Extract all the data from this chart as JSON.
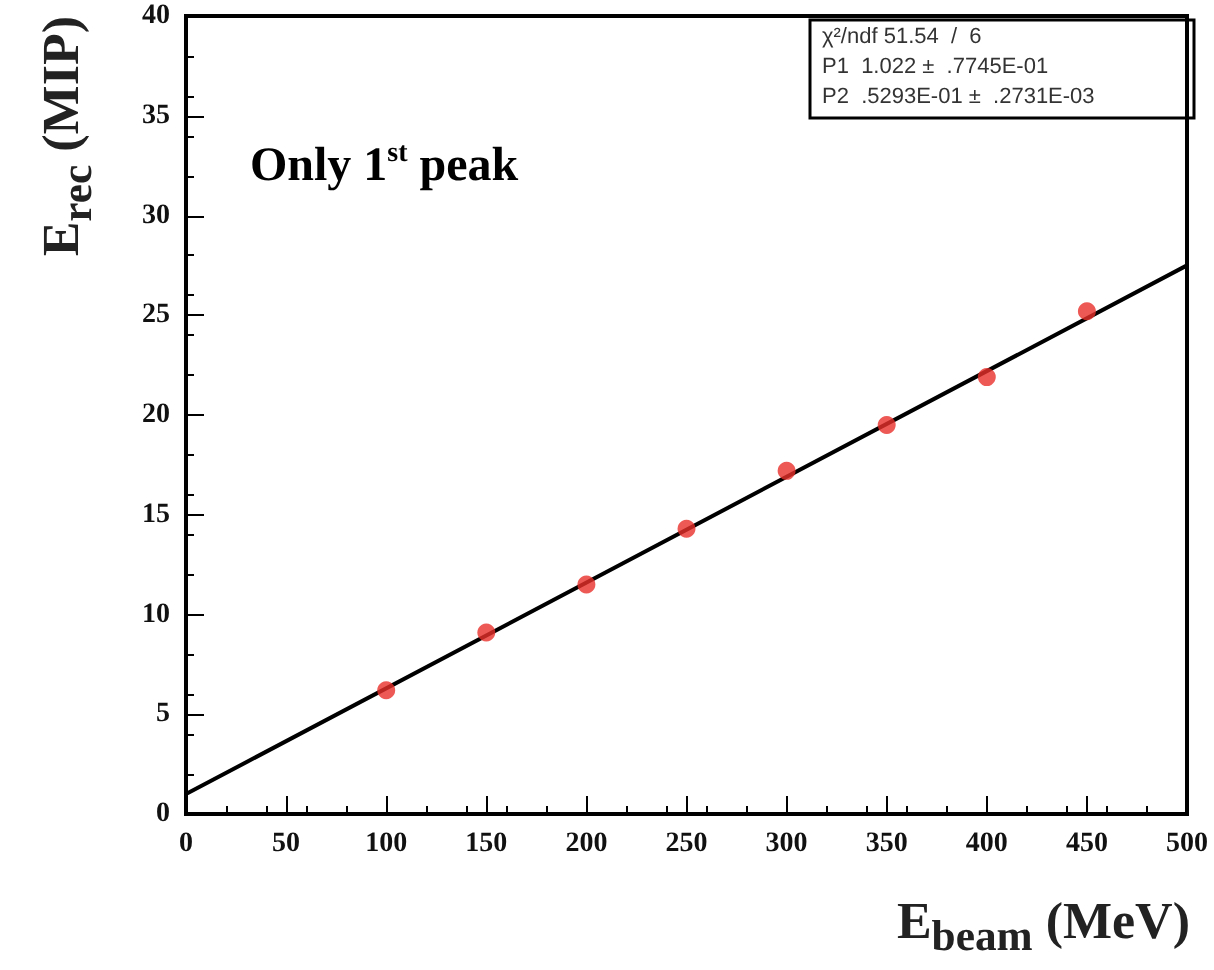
{
  "chart_data": {
    "type": "scatter",
    "xlabel": "E$_{beam}$ (MeV)",
    "ylabel": "E$_{rec}$ (MIP)",
    "annotations": [
      "Only 1$^{st}$ peak",
      "χ²/ndf 51.54  /  6",
      "P1  1.022 ±  .7745E-01",
      "P2  .5293E-01 ±  .2731E-03"
    ],
    "x": [
      100,
      150,
      200,
      250,
      300,
      350,
      400,
      450
    ],
    "series": [
      {
        "color": "#e8302a",
        "values": [
          6.2,
          9.1,
          11.5,
          14.3,
          17.2,
          19.5,
          21.9,
          25.2
        ]
      },
      {
        "type": "line",
        "marker": "none",
        "color": "#000000",
        "x": [
          0,
          500
        ],
        "values": [
          1.0,
          27.5
        ]
      }
    ],
    "xlim": [
      0,
      500
    ],
    "xticks": [
      0,
      50,
      100,
      150,
      200,
      250,
      300,
      350,
      400,
      450,
      500
    ],
    "ylim": [
      0,
      40
    ],
    "yticks": [
      0,
      5,
      10,
      15,
      20,
      25,
      30,
      35,
      40
    ],
    "grid": false,
    "marker": "circle",
    "line_style": "solid"
  }
}
